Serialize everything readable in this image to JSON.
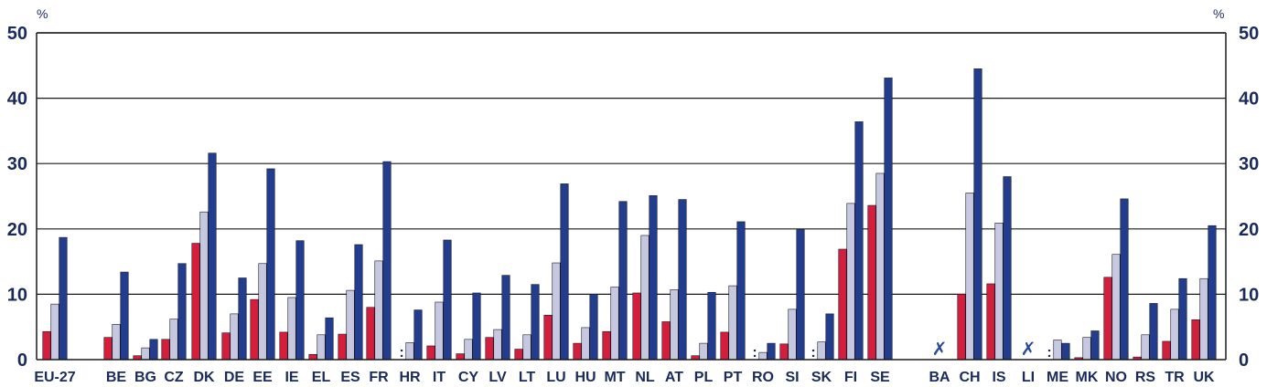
{
  "chart_data": {
    "type": "bar",
    "y_unit_left": "%",
    "y_unit_right": "%",
    "ylim": [
      0,
      50
    ],
    "yticks": [
      0,
      10,
      20,
      30,
      40,
      50
    ],
    "grid": true,
    "colors": [
      "#d51e3c",
      "#c6c8e0",
      "#223d8e"
    ],
    "categories": [
      "EU-27",
      "BE",
      "BG",
      "CZ",
      "DK",
      "DE",
      "EE",
      "IE",
      "EL",
      "ES",
      "FR",
      "HR",
      "IT",
      "CY",
      "LV",
      "LT",
      "LU",
      "HU",
      "MT",
      "NL",
      "AT",
      "PL",
      "PT",
      "RO",
      "SI",
      "SK",
      "FI",
      "SE",
      "BA",
      "CH",
      "IS",
      "LI",
      "ME",
      "MK",
      "NO",
      "RS",
      "TR",
      "UK"
    ],
    "series": [
      {
        "values": [
          4.3,
          3.4,
          0.6,
          3.1,
          17.8,
          4.1,
          9.2,
          4.2,
          0.8,
          3.9,
          8.0,
          null,
          2.1,
          0.9,
          3.4,
          1.6,
          6.8,
          2.5,
          4.3,
          10.2,
          5.8,
          0.6,
          4.2,
          null,
          2.4,
          null,
          16.9,
          23.6,
          null,
          10.0,
          11.6,
          null,
          null,
          0.3,
          12.6,
          0.4,
          2.8,
          6.1
        ]
      },
      {
        "values": [
          8.5,
          5.4,
          1.8,
          6.2,
          22.6,
          7.0,
          14.7,
          9.5,
          3.8,
          10.6,
          15.1,
          2.6,
          8.8,
          3.1,
          4.6,
          3.8,
          14.8,
          4.9,
          11.1,
          19.0,
          10.7,
          2.5,
          11.3,
          1.1,
          7.7,
          2.7,
          23.9,
          28.5,
          null,
          25.5,
          20.9,
          null,
          3.0,
          3.4,
          16.1,
          3.8,
          7.7,
          12.4
        ]
      },
      {
        "values": [
          18.7,
          13.4,
          3.1,
          14.7,
          31.6,
          12.5,
          29.2,
          18.2,
          6.4,
          17.6,
          30.3,
          7.6,
          18.3,
          10.2,
          12.9,
          11.5,
          26.9,
          10.0,
          24.2,
          25.1,
          24.5,
          10.3,
          21.1,
          2.5,
          19.9,
          7.0,
          36.4,
          43.1,
          null,
          44.5,
          28.0,
          null,
          2.5,
          4.4,
          24.6,
          8.6,
          12.4,
          20.5
        ]
      }
    ],
    "not_available_marker": ":",
    "confidential_marker": "✗",
    "not_available": [
      {
        "category": "HR",
        "series": 0
      },
      {
        "category": "RO",
        "series": 0
      },
      {
        "category": "SK",
        "series": 0
      },
      {
        "category": "ME",
        "series": 0
      }
    ],
    "crossed": [
      "BA",
      "LI"
    ]
  }
}
